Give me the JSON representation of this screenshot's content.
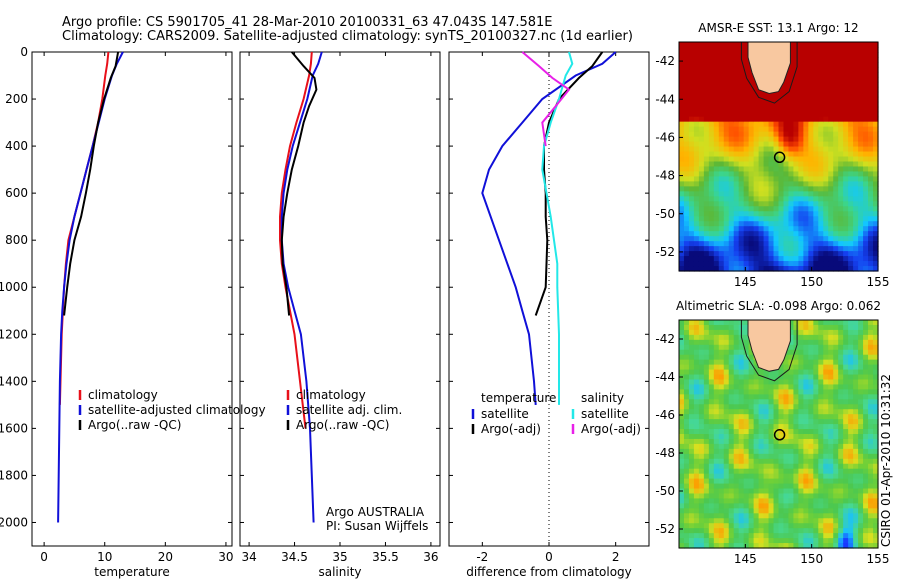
{
  "title_line1": "Argo profile: CS 5901705_41 28-Mar-2010 20100331_63 47.043S 147.581E",
  "title_line2": "Climatology: CARS2009. Satellite-adjusted climatology: synTS_20100327.nc (1d earlier)",
  "chart_data": [
    {
      "type": "line",
      "xlabel": "temperature",
      "ylabel": "",
      "xlim": [
        -2,
        31
      ],
      "ylim": [
        2100,
        0
      ],
      "xticks": [
        0,
        10,
        20,
        30
      ],
      "yticks": [
        0,
        200,
        400,
        600,
        800,
        1000,
        1200,
        1400,
        1600,
        1800,
        2000
      ],
      "legend": [
        "climatology",
        "satellite-adjusted climatology",
        "Argo(..raw -QC)"
      ],
      "series": [
        {
          "name": "climatology",
          "color": "#e8101a",
          "x": [
            10.6,
            10.4,
            10.1,
            9.6,
            8.9,
            8.0,
            7.0,
            6.0,
            5.0,
            4.0,
            3.6,
            3.3,
            3.1,
            2.9,
            2.8,
            2.6
          ],
          "y": [
            0,
            50,
            100,
            200,
            300,
            400,
            500,
            600,
            700,
            800,
            900,
            1000,
            1100,
            1200,
            1300,
            1500
          ]
        },
        {
          "name": "satellite-adjusted climatology",
          "color": "#1010d8",
          "x": [
            13.0,
            12.0,
            11.2,
            10.0,
            9.0,
            8.0,
            7.0,
            6.0,
            5.0,
            4.2,
            3.7,
            3.3,
            3.0,
            2.8,
            2.6,
            2.5,
            2.4,
            2.3
          ],
          "y": [
            0,
            50,
            100,
            200,
            300,
            400,
            500,
            600,
            700,
            800,
            900,
            1000,
            1100,
            1200,
            1400,
            1600,
            1800,
            2000
          ]
        },
        {
          "name": "Argo(..raw -QC)",
          "color": "#000000",
          "x": [
            12.2,
            11.8,
            11.0,
            9.9,
            8.9,
            8.2,
            7.6,
            6.9,
            6.1,
            5.0,
            4.3,
            3.8,
            3.3
          ],
          "y": [
            0,
            60,
            110,
            200,
            300,
            400,
            500,
            600,
            700,
            800,
            900,
            1000,
            1120
          ]
        }
      ]
    },
    {
      "type": "line",
      "xlabel": "salinity",
      "xlim": [
        33.9,
        36.1
      ],
      "ylim": [
        2100,
        0
      ],
      "xticks": [
        34,
        34.5,
        35,
        35.5,
        36
      ],
      "yticks": [
        0,
        200,
        400,
        600,
        800,
        1000,
        1200,
        1400,
        1600,
        1800,
        2000
      ],
      "legend": [
        "climatology",
        "satellite adj. clim.",
        "Argo(..raw -QC)"
      ],
      "annotations": [
        "Argo AUSTRALIA",
        "PI: Susan Wijffels"
      ],
      "series": [
        {
          "name": "climatology",
          "color": "#e8101a",
          "x": [
            34.69,
            34.68,
            34.66,
            34.6,
            34.52,
            34.45,
            34.4,
            34.36,
            34.34,
            34.34,
            34.36,
            34.4,
            34.45,
            34.5,
            34.56,
            34.62
          ],
          "y": [
            0,
            50,
            100,
            200,
            300,
            400,
            500,
            600,
            700,
            800,
            900,
            1000,
            1100,
            1200,
            1400,
            1600
          ]
        },
        {
          "name": "satellite adj. clim.",
          "color": "#1010d8",
          "x": [
            34.8,
            34.76,
            34.7,
            34.64,
            34.56,
            34.48,
            34.42,
            34.38,
            34.36,
            34.36,
            34.38,
            34.43,
            34.5,
            34.57,
            34.63,
            34.67,
            34.69,
            34.71
          ],
          "y": [
            0,
            50,
            100,
            200,
            300,
            400,
            500,
            600,
            700,
            800,
            900,
            1000,
            1100,
            1200,
            1400,
            1600,
            1800,
            2000
          ]
        },
        {
          "name": "Argo(..raw -QC)",
          "color": "#000000",
          "x": [
            34.47,
            34.6,
            34.72,
            34.74,
            34.66,
            34.6,
            34.54,
            34.47,
            34.42,
            34.38,
            34.36,
            34.37,
            34.41,
            34.44
          ],
          "y": [
            0,
            60,
            110,
            160,
            230,
            300,
            400,
            500,
            600,
            700,
            800,
            900,
            1000,
            1120
          ]
        }
      ]
    },
    {
      "type": "line",
      "xlabel": "difference from climatology",
      "xlim": [
        -3,
        3
      ],
      "ylim": [
        2100,
        0
      ],
      "xticks": [
        -2,
        0,
        2
      ],
      "yticks": [
        0,
        200,
        400,
        600,
        800,
        1000,
        1200,
        1400,
        1600,
        1800,
        2000
      ],
      "legend_groups": [
        {
          "title": "temperature",
          "entries": [
            "satellite",
            "Argo(-adj)"
          ]
        },
        {
          "title": "salinity",
          "entries": [
            "satellite",
            "Argo(-adj)"
          ]
        }
      ],
      "series": [
        {
          "name": "temperature satellite",
          "color": "#1010d8",
          "x": [
            2.0,
            1.6,
            0.8,
            -0.2,
            -0.8,
            -1.4,
            -1.8,
            -2.0,
            -1.5,
            -1.0,
            -0.8,
            -0.6,
            -0.45,
            -0.4
          ],
          "y": [
            0,
            50,
            100,
            200,
            300,
            400,
            500,
            600,
            800,
            1000,
            1100,
            1200,
            1400,
            1500
          ]
        },
        {
          "name": "temperature Argo(-adj)",
          "color": "#000000",
          "x": [
            1.6,
            1.3,
            0.9,
            0.3,
            0.0,
            -0.15,
            -0.15,
            -0.1,
            -0.1,
            -0.05,
            -0.1,
            -0.4
          ],
          "y": [
            0,
            60,
            110,
            200,
            300,
            400,
            500,
            600,
            700,
            800,
            1000,
            1120
          ]
        },
        {
          "name": "salinity satellite",
          "color": "#22e8e8",
          "x": [
            0.6,
            0.7,
            0.5,
            0.3,
            0.05,
            -0.15,
            -0.2,
            0.05,
            0.25,
            0.25,
            0.3,
            0.3
          ],
          "y": [
            0,
            50,
            100,
            200,
            300,
            400,
            500,
            700,
            900,
            1000,
            1200,
            1500
          ]
        },
        {
          "name": "salinity Argo(-adj)",
          "color": "#e820e8",
          "x": [
            -0.8,
            -0.3,
            0.1,
            0.6,
            0.2,
            -0.2,
            -0.1
          ],
          "y": [
            0,
            60,
            110,
            160,
            230,
            300,
            400
          ]
        }
      ]
    },
    {
      "type": "heatmap",
      "title": "AMSR-E SST: 13.1 Argo: 12",
      "xlim": [
        140,
        155
      ],
      "ylim": [
        -53,
        -41
      ],
      "xticks": [
        145,
        150,
        155
      ],
      "yticks": [
        -42,
        -44,
        -46,
        -48,
        -50,
        -52
      ],
      "marker": {
        "lon": 147.581,
        "lat": -47.043
      }
    },
    {
      "type": "heatmap",
      "title": "Altimetric SLA: -0.098 Argo: 0.062",
      "xlim": [
        140,
        155
      ],
      "ylim": [
        -53,
        -41
      ],
      "xticks": [
        145,
        150,
        155
      ],
      "yticks": [
        -42,
        -44,
        -46,
        -48,
        -50,
        -52
      ],
      "marker": {
        "lon": 147.581,
        "lat": -47.043
      }
    }
  ],
  "credit": "CSIRO 01-Apr-2010 10:31:32"
}
